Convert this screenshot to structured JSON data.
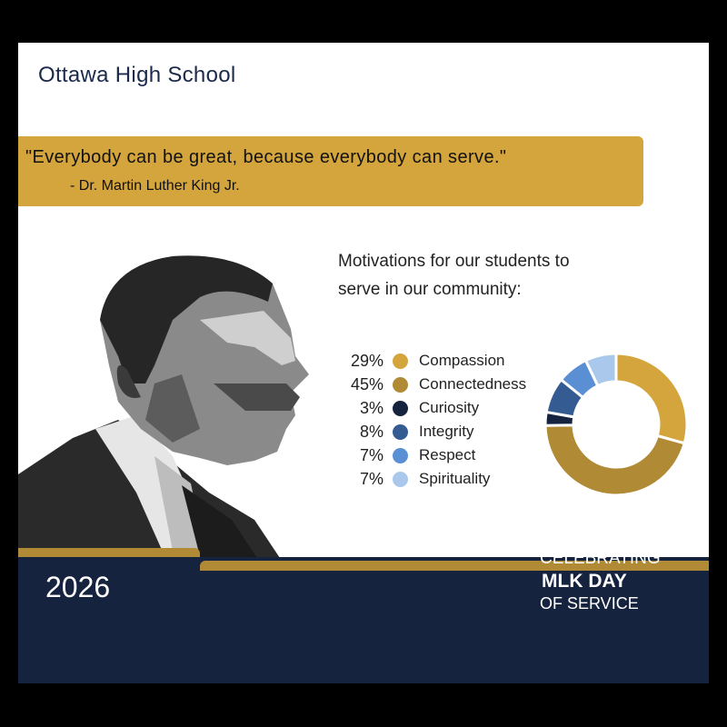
{
  "header": {
    "school": "Ottawa High School"
  },
  "quote": {
    "text": "\"Everybody can be great, because everybody can serve.\"",
    "author": "- Dr. Martin Luther King Jr."
  },
  "chart_data": {
    "type": "pie",
    "title": "Motivations for our students to serve in our community:",
    "donut": true,
    "legend_position": "left",
    "categories": [
      "Compassion",
      "Connectedness",
      "Curiosity",
      "Integrity",
      "Respect",
      "Spirituality"
    ],
    "values": [
      29,
      45,
      3,
      8,
      7,
      7
    ],
    "labels": [
      "29%",
      "45%",
      "3%",
      "8%",
      "7%",
      "7%"
    ],
    "colors": [
      "#d4a53c",
      "#b08a35",
      "#16233f",
      "#345c93",
      "#5b8fd4",
      "#a9c8ec"
    ]
  },
  "footer": {
    "year": "2026",
    "line1": "CELEBRATING",
    "line2": "MLK DAY",
    "line3": "OF SERVICE"
  },
  "colors": {
    "navy": "#16233f",
    "gold": "#d4a53c",
    "dark_gold": "#b08a35"
  }
}
